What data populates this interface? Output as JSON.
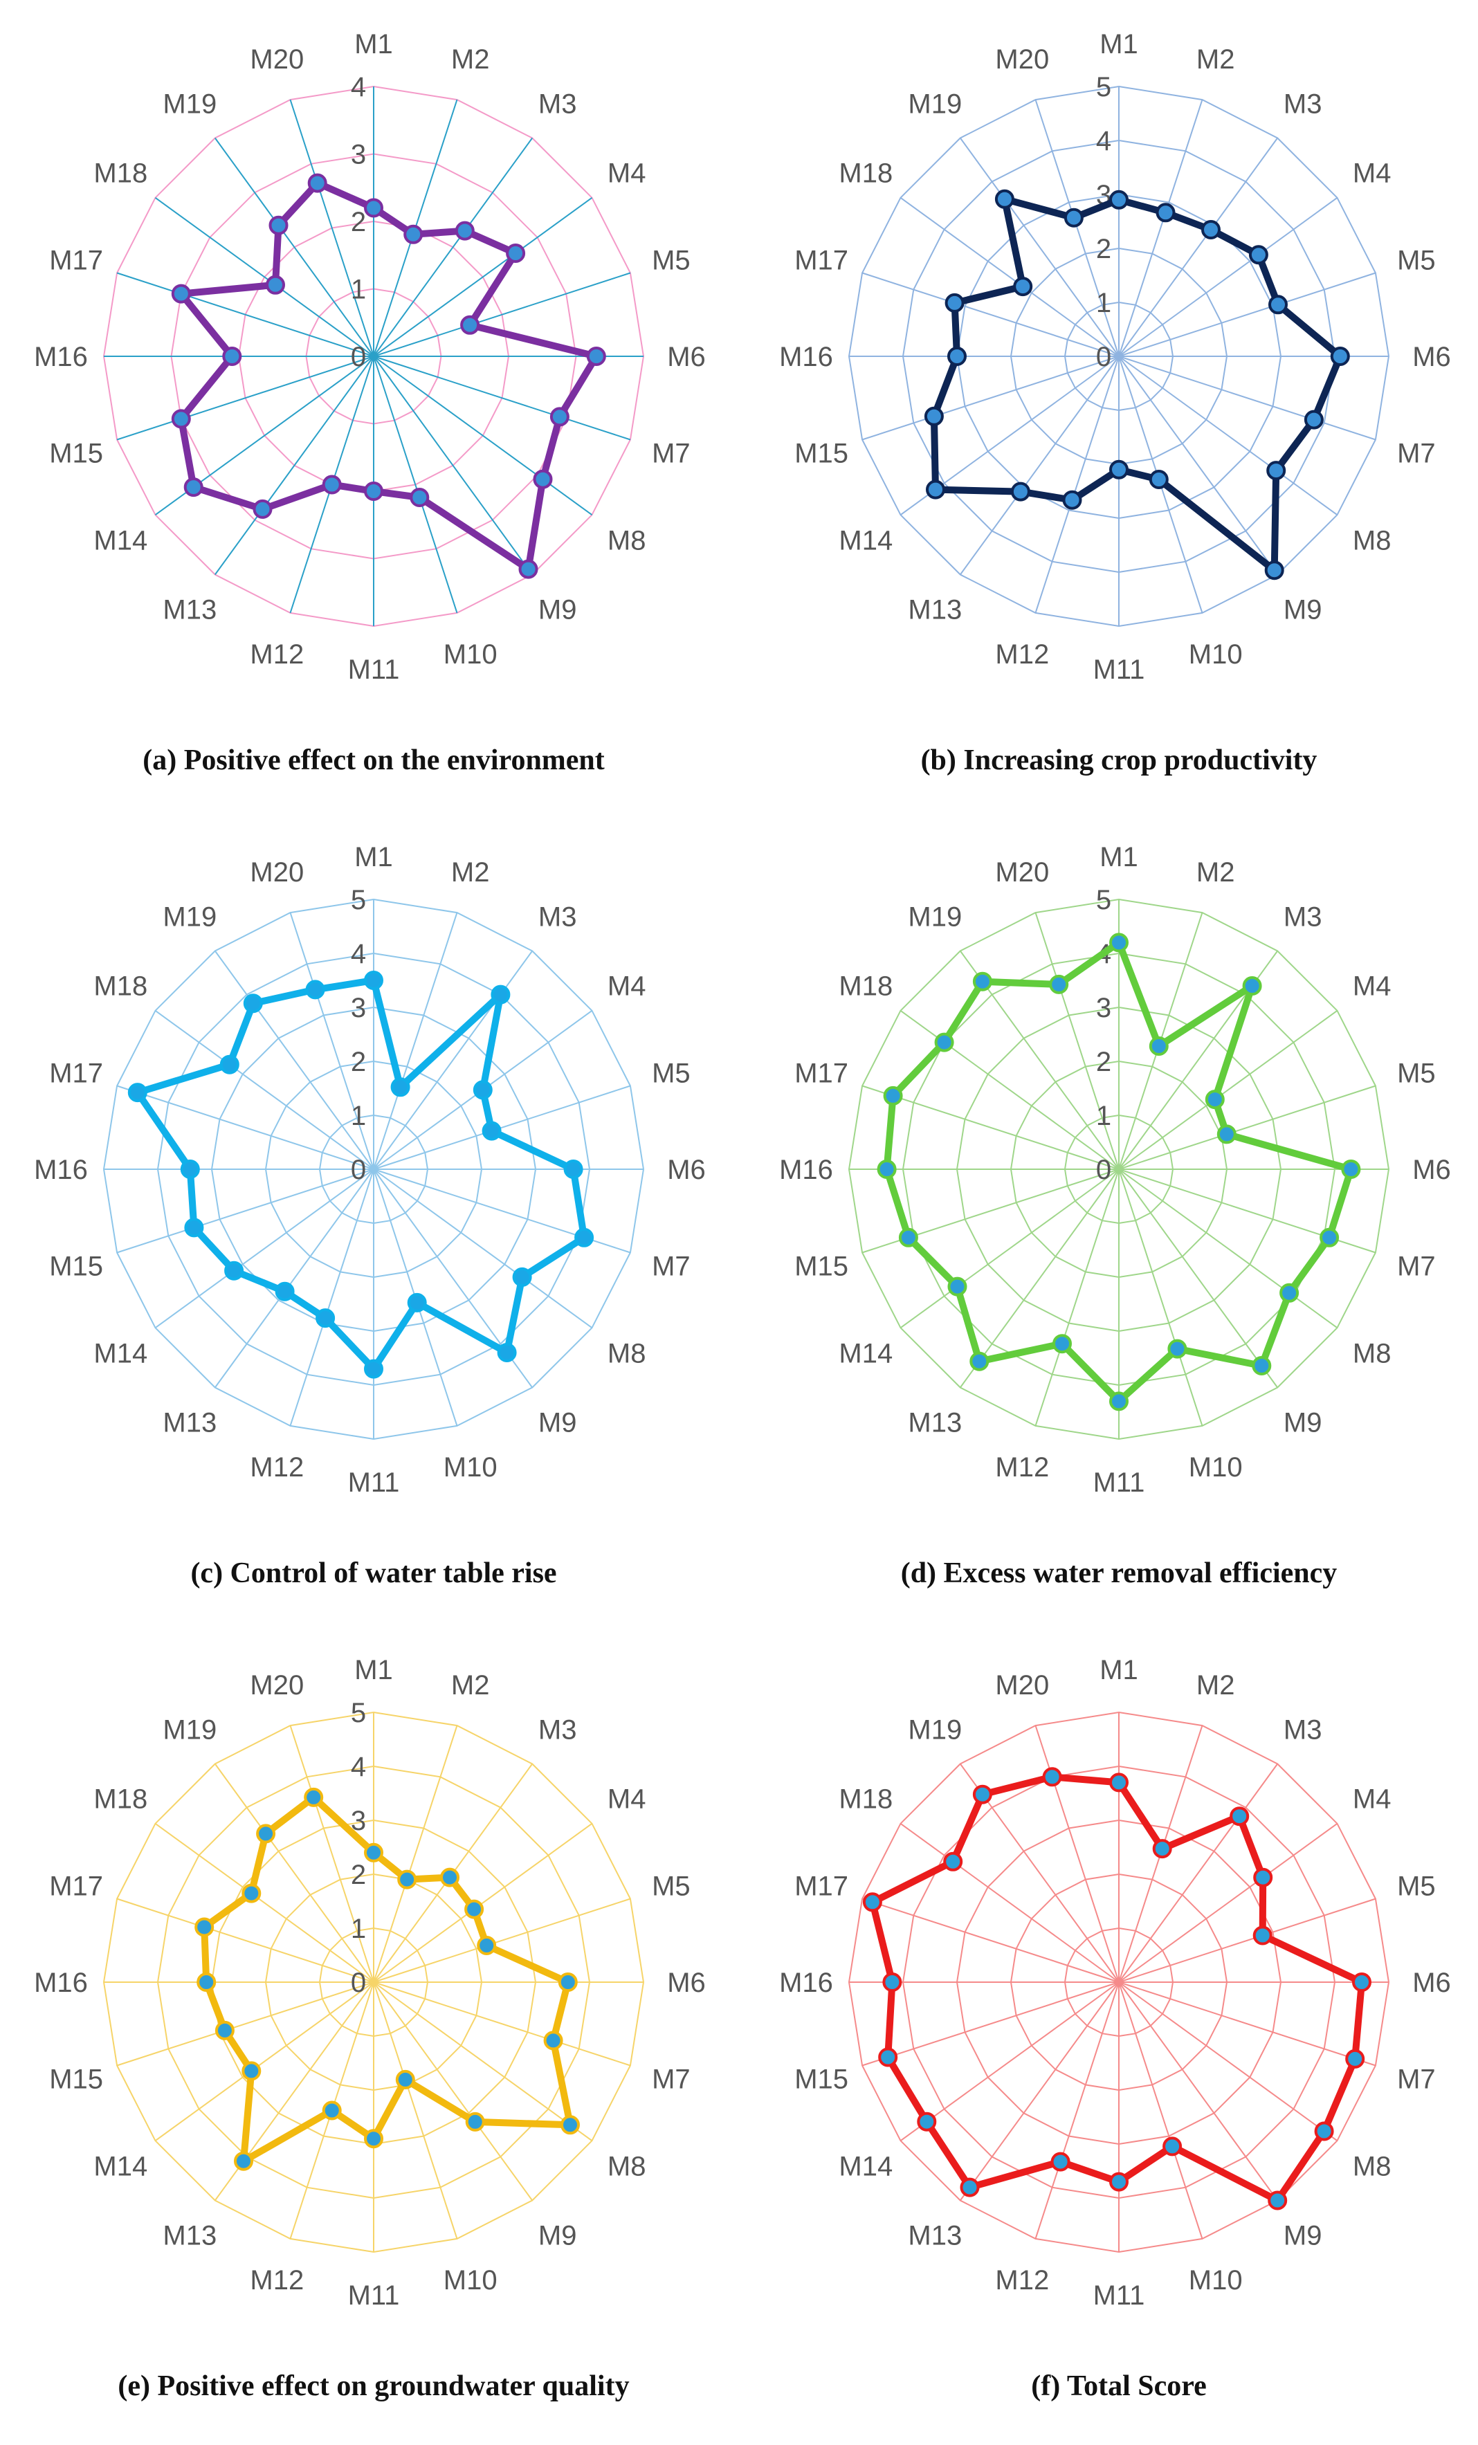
{
  "categories": [
    "M1",
    "M2",
    "M3",
    "M4",
    "M5",
    "M6",
    "M7",
    "M8",
    "M9",
    "M10",
    "M11",
    "M12",
    "M13",
    "M14",
    "M15",
    "M16",
    "M17",
    "M18",
    "M19",
    "M20"
  ],
  "chart_data": [
    {
      "type": "radar",
      "id": "a",
      "caption": "(a) Positive effect on the environment",
      "rmax": 4,
      "ticks": [
        0,
        1,
        2,
        3,
        4
      ],
      "grid_color": "#f49ac8",
      "spoke_color": "#2aa0c8",
      "line_color": "#7b2fa0",
      "marker_fill": "#3a8fd6",
      "marker_stroke": "#7b2fa0",
      "series": [
        {
          "name": "Positive effect on the environment",
          "values": [
            2.2,
            1.9,
            2.3,
            2.6,
            1.5,
            3.3,
            2.9,
            3.1,
            3.9,
            2.2,
            2.0,
            2.0,
            2.8,
            3.3,
            3.0,
            2.1,
            3.0,
            1.8,
            2.4,
            2.7
          ]
        }
      ]
    },
    {
      "type": "radar",
      "id": "b",
      "caption": "(b) Increasing crop productivity",
      "rmax": 5,
      "ticks": [
        0,
        1,
        2,
        3,
        4,
        5
      ],
      "grid_color": "#8fb3e0",
      "spoke_color": "#8fb3e0",
      "line_color": "#0d2554",
      "marker_fill": "#3a8fd6",
      "marker_stroke": "#0d2554",
      "series": [
        {
          "name": "Increasing crop productivity",
          "values": [
            2.9,
            2.8,
            2.9,
            3.2,
            3.1,
            4.1,
            3.8,
            3.6,
            4.9,
            2.4,
            2.1,
            2.8,
            3.1,
            4.2,
            3.6,
            3.0,
            3.2,
            2.2,
            3.6,
            2.7
          ]
        }
      ]
    },
    {
      "type": "radar",
      "id": "c",
      "caption": "(c) Control of water table rise",
      "rmax": 5,
      "ticks": [
        0,
        1,
        2,
        3,
        4,
        5
      ],
      "grid_color": "#8ec6ea",
      "spoke_color": "#8ec6ea",
      "line_color": "#0fb0ea",
      "marker_fill": "#1aa7e6",
      "marker_stroke": "#0fb0ea",
      "series": [
        {
          "name": "Control of water table rise",
          "values": [
            3.5,
            1.6,
            4.0,
            2.5,
            2.3,
            3.7,
            4.1,
            3.4,
            4.2,
            2.6,
            3.7,
            2.9,
            2.8,
            3.2,
            3.5,
            3.4,
            4.6,
            3.3,
            3.8,
            3.5
          ]
        }
      ]
    },
    {
      "type": "radar",
      "id": "d",
      "caption": "(d) Excess water removal efficiency",
      "rmax": 5,
      "ticks": [
        0,
        1,
        2,
        3,
        4,
        5
      ],
      "grid_color": "#9fd68a",
      "spoke_color": "#9fd68a",
      "line_color": "#62cc3c",
      "marker_fill": "#2d9ed8",
      "marker_stroke": "#62cc3c",
      "series": [
        {
          "name": "Excess water removal efficiency",
          "values": [
            4.2,
            2.4,
            4.2,
            2.2,
            2.1,
            4.3,
            4.1,
            3.9,
            4.5,
            3.5,
            4.3,
            3.4,
            4.4,
            3.7,
            4.1,
            4.3,
            4.4,
            4.0,
            4.3,
            3.6
          ]
        }
      ]
    },
    {
      "type": "radar",
      "id": "e",
      "caption": "(e) Positive effect on groundwater quality",
      "rmax": 5,
      "ticks": [
        0,
        1,
        2,
        3,
        4,
        5
      ],
      "grid_color": "#f6d469",
      "spoke_color": "#f6d469",
      "line_color": "#f2b90f",
      "marker_fill": "#2d9ed8",
      "marker_stroke": "#f2b90f",
      "series": [
        {
          "name": "Positive effect on groundwater quality",
          "values": [
            2.4,
            2.0,
            2.4,
            2.3,
            2.2,
            3.6,
            3.5,
            4.5,
            3.2,
            1.9,
            2.9,
            2.5,
            4.1,
            2.8,
            2.9,
            3.1,
            3.3,
            2.8,
            3.4,
            3.6
          ]
        }
      ]
    },
    {
      "type": "radar",
      "id": "f",
      "caption": "(f) Total Score",
      "rmax": 5,
      "ticks": [
        0,
        1,
        2,
        3,
        4,
        5
      ],
      "show_tick_labels": false,
      "grid_color": "#f58a8a",
      "spoke_color": "#f58a8a",
      "line_color": "#ea1c1c",
      "marker_fill": "#2d9ed8",
      "marker_stroke": "#ea1c1c",
      "series": [
        {
          "name": "Total Score",
          "values": [
            3.7,
            2.6,
            3.8,
            3.3,
            2.8,
            4.5,
            4.6,
            4.7,
            5.0,
            3.2,
            3.7,
            3.5,
            4.7,
            4.4,
            4.5,
            4.2,
            4.8,
            3.8,
            4.3,
            4.0
          ]
        }
      ]
    }
  ]
}
